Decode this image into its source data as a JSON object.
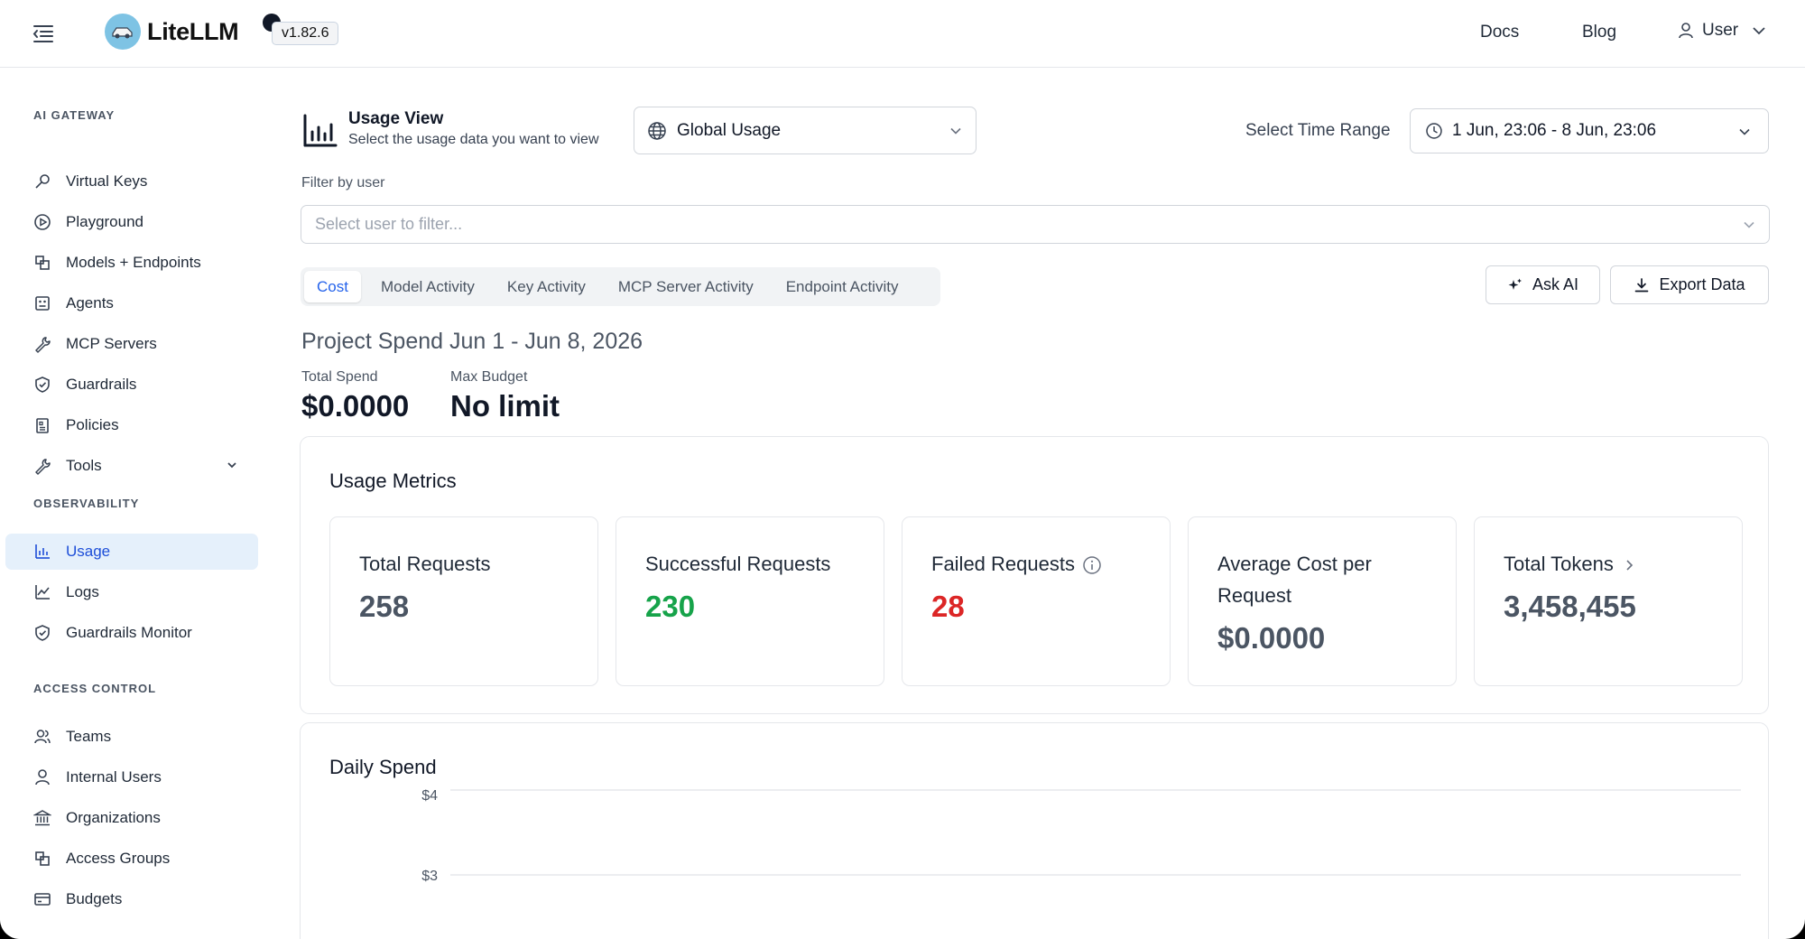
{
  "header": {
    "logo_text": "LiteLLM",
    "version": "v1.82.6",
    "nav": [
      "Docs",
      "Blog"
    ],
    "user_label": "User"
  },
  "sidebar": {
    "sections": [
      {
        "title": "AI GATEWAY",
        "items": [
          {
            "label": "Virtual Keys",
            "icon": "key-icon"
          },
          {
            "label": "Playground",
            "icon": "play-circle-icon"
          },
          {
            "label": "Models + Endpoints",
            "icon": "blocks-icon"
          },
          {
            "label": "Agents",
            "icon": "robot-icon"
          },
          {
            "label": "MCP Servers",
            "icon": "tool-icon"
          },
          {
            "label": "Guardrails",
            "icon": "shield-icon"
          },
          {
            "label": "Policies",
            "icon": "clipboard-icon"
          },
          {
            "label": "Tools",
            "icon": "wrench-icon"
          }
        ]
      },
      {
        "title": "OBSERVABILITY",
        "items": [
          {
            "label": "Usage",
            "icon": "bar-chart-icon",
            "active": true
          },
          {
            "label": "Logs",
            "icon": "line-chart-icon"
          },
          {
            "label": "Guardrails Monitor",
            "icon": "shield-check-icon"
          }
        ]
      },
      {
        "title": "ACCESS CONTROL",
        "items": [
          {
            "label": "Teams",
            "icon": "team-icon"
          },
          {
            "label": "Internal Users",
            "icon": "user-icon"
          },
          {
            "label": "Organizations",
            "icon": "bank-icon"
          },
          {
            "label": "Access Groups",
            "icon": "blocks-icon"
          },
          {
            "label": "Budgets",
            "icon": "credit-card-icon"
          }
        ]
      }
    ]
  },
  "usage_view": {
    "title": "Usage View",
    "subtitle": "Select the usage data you want to view",
    "scope_selected": "Global Usage",
    "time_range_label": "Select Time Range",
    "time_range_value": "1 Jun, 23:06 - 8 Jun, 23:06",
    "filter_label": "Filter by user",
    "filter_placeholder": "Select user to filter..."
  },
  "tabs": [
    "Cost",
    "Model Activity",
    "Key Activity",
    "MCP Server Activity",
    "Endpoint Activity"
  ],
  "active_tab": "Cost",
  "actions": {
    "ask_ai": "Ask AI",
    "export": "Export Data"
  },
  "spend": {
    "title": "Project Spend Jun 1 - Jun 8, 2026",
    "total_label": "Total Spend",
    "total_value": "$0.0000",
    "budget_label": "Max Budget",
    "budget_value": "No limit"
  },
  "metrics": {
    "title": "Usage Metrics",
    "cards": [
      {
        "label": "Total Requests",
        "value": "258",
        "color": "#4b5563"
      },
      {
        "label": "Successful Requests",
        "value": "230",
        "color": "#16a34a"
      },
      {
        "label": "Failed Requests",
        "value": "28",
        "color": "#dc2626"
      },
      {
        "label": "Average Cost per Request",
        "value": "$0.0000",
        "color": "#4b5563"
      },
      {
        "label": "Total Tokens",
        "value": "3,458,455",
        "color": "#4b5563"
      }
    ]
  },
  "daily_spend": {
    "title": "Daily Spend",
    "y_ticks": [
      "$4",
      "$3"
    ]
  }
}
